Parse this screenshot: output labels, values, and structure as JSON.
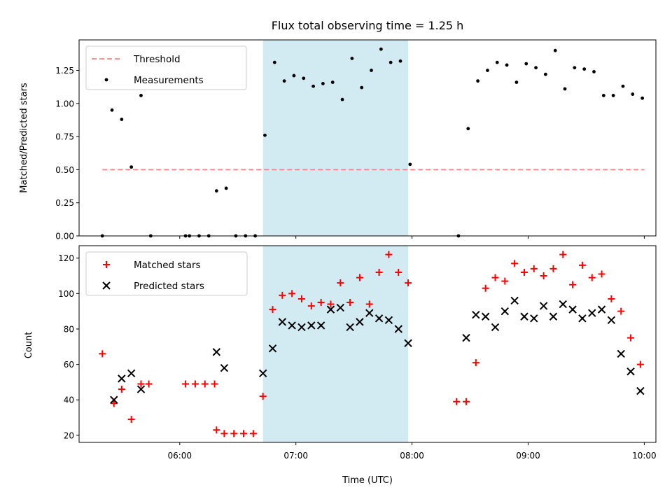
{
  "chart_data": [
    {
      "type": "scatter",
      "title": "Flux total observing time = 1.25 h",
      "xlabel": "",
      "ylabel": "Matched/Predicted stars",
      "xlim": [
        "05:08",
        "10:06"
      ],
      "ylim": [
        0,
        1.48
      ],
      "yticks": [
        0.0,
        0.25,
        0.5,
        0.75,
        1.0,
        1.25
      ],
      "ytick_labels": [
        "0.00",
        "0.25",
        "0.50",
        "0.75",
        "1.00",
        "1.25"
      ],
      "shaded_span": [
        "06:43",
        "07:58"
      ],
      "shade_color": "#add8e6",
      "legend_position": "upper left",
      "series": [
        {
          "name": "Threshold",
          "kind": "line",
          "style": "dashed",
          "color": "#ff8080",
          "x": [
            "05:20",
            "10:00"
          ],
          "y": [
            0.5,
            0.5
          ]
        },
        {
          "name": "Measurements",
          "kind": "points",
          "color": "#000000",
          "x": [
            "05:20",
            "05:25",
            "05:30",
            "05:35",
            "05:40",
            "05:45",
            "06:03",
            "06:05",
            "06:10",
            "06:15",
            "06:19",
            "06:24",
            "06:29",
            "06:34",
            "06:39",
            "06:44",
            "06:49",
            "06:54",
            "06:59",
            "07:04",
            "07:09",
            "07:14",
            "07:19",
            "07:24",
            "07:29",
            "07:34",
            "07:39",
            "07:44",
            "07:49",
            "07:54",
            "07:59",
            "08:24",
            "08:29",
            "08:34",
            "08:39",
            "08:44",
            "08:49",
            "08:54",
            "08:59",
            "09:04",
            "09:09",
            "09:14",
            "09:19",
            "09:24",
            "09:29",
            "09:34",
            "09:39",
            "09:44",
            "09:49",
            "09:54",
            "09:59"
          ],
          "y": [
            0.0,
            0.95,
            0.88,
            0.52,
            1.06,
            0.0,
            0.0,
            0.0,
            0.0,
            0.0,
            0.34,
            0.36,
            0.0,
            0.0,
            0.0,
            0.76,
            1.31,
            1.17,
            1.21,
            1.19,
            1.13,
            1.15,
            1.16,
            1.03,
            1.34,
            1.12,
            1.25,
            1.41,
            1.31,
            1.32,
            0.54,
            0.0,
            0.81,
            1.17,
            1.25,
            1.31,
            1.29,
            1.16,
            1.3,
            1.27,
            1.22,
            1.4,
            1.11,
            1.27,
            1.26,
            1.24,
            1.06,
            1.06,
            1.13,
            1.07,
            1.04
          ]
        }
      ]
    },
    {
      "type": "scatter",
      "title": "",
      "xlabel": "Time (UTC)",
      "ylabel": "Count",
      "xlim": [
        "05:08",
        "10:06"
      ],
      "ylim": [
        16,
        127
      ],
      "xticks": [
        "06:00",
        "07:00",
        "08:00",
        "09:00",
        "10:00"
      ],
      "xtick_labels": [
        "06:00",
        "07:00",
        "08:00",
        "09:00",
        "10:00"
      ],
      "yticks": [
        20,
        40,
        60,
        80,
        100,
        120
      ],
      "ytick_labels": [
        "20",
        "40",
        "60",
        "80",
        "100",
        "120"
      ],
      "shaded_span": [
        "06:43",
        "07:58"
      ],
      "shade_color": "#add8e6",
      "legend_position": "upper left",
      "series": [
        {
          "name": "Matched stars",
          "kind": "plus",
          "color": "#ff0000",
          "x": [
            "05:20",
            "05:26",
            "05:30",
            "05:35",
            "05:40",
            "05:44",
            "06:03",
            "06:08",
            "06:13",
            "06:18",
            "06:19",
            "06:23",
            "06:28",
            "06:33",
            "06:38",
            "06:43",
            "06:48",
            "06:53",
            "06:58",
            "07:03",
            "07:08",
            "07:13",
            "07:18",
            "07:23",
            "07:28",
            "07:33",
            "07:38",
            "07:43",
            "07:48",
            "07:53",
            "07:58",
            "08:23",
            "08:28",
            "08:33",
            "08:38",
            "08:43",
            "08:48",
            "08:53",
            "08:58",
            "09:03",
            "09:08",
            "09:13",
            "09:18",
            "09:23",
            "09:28",
            "09:33",
            "09:38",
            "09:43",
            "09:48",
            "09:53",
            "09:58"
          ],
          "y": [
            66,
            38,
            46,
            29,
            49,
            49,
            49,
            49,
            49,
            49,
            23,
            21,
            21,
            21,
            21,
            42,
            91,
            99,
            100,
            97,
            93,
            95,
            94,
            106,
            95,
            109,
            94,
            112,
            122,
            112,
            106,
            39,
            39,
            61,
            103,
            109,
            107,
            117,
            112,
            114,
            110,
            114,
            122,
            105,
            116,
            109,
            111,
            97,
            90,
            75,
            60
          ]
        },
        {
          "name": "Predicted stars",
          "kind": "cross",
          "color": "#000000",
          "x": [
            "05:26",
            "05:30",
            "05:35",
            "05:40",
            "06:19",
            "06:23",
            "06:43",
            "06:48",
            "06:53",
            "06:58",
            "07:03",
            "07:08",
            "07:13",
            "07:18",
            "07:23",
            "07:28",
            "07:33",
            "07:38",
            "07:43",
            "07:48",
            "07:53",
            "07:58",
            "08:28",
            "08:33",
            "08:38",
            "08:43",
            "08:48",
            "08:53",
            "08:58",
            "09:03",
            "09:08",
            "09:13",
            "09:18",
            "09:23",
            "09:28",
            "09:33",
            "09:38",
            "09:43",
            "09:48",
            "09:53",
            "09:58"
          ],
          "y": [
            40,
            52,
            55,
            46,
            67,
            58,
            55,
            69,
            84,
            82,
            81,
            82,
            82,
            91,
            92,
            81,
            84,
            89,
            86,
            85,
            80,
            72,
            75,
            88,
            87,
            81,
            90,
            96,
            87,
            86,
            93,
            87,
            94,
            91,
            86,
            89,
            91,
            85,
            66,
            56,
            45
          ]
        }
      ]
    }
  ]
}
